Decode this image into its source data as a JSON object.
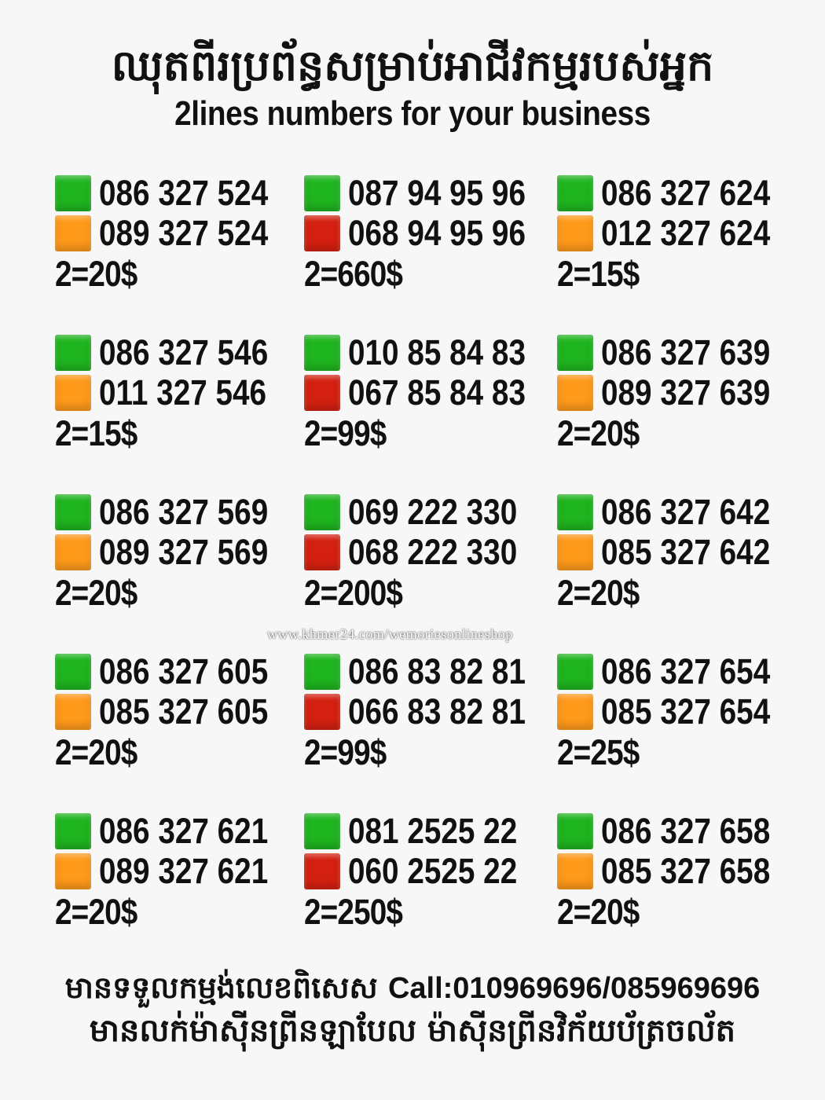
{
  "header": {
    "title_khmer": "ឈុតពីរប្រព័ន្ធសម្រាប់អាជីវកម្មរបស់អ្នក",
    "title_english": "2lines numbers for your business"
  },
  "colors": {
    "green": "#1fb51f",
    "orange": "#ff9a1a",
    "red": "#d42010"
  },
  "listings": [
    {
      "lines": [
        {
          "number": "086 327 524",
          "color": "green"
        },
        {
          "number": "089 327 524",
          "color": "orange"
        }
      ],
      "price": "2=20$"
    },
    {
      "lines": [
        {
          "number": "087 94 95 96",
          "color": "green"
        },
        {
          "number": "068 94 95 96",
          "color": "red"
        }
      ],
      "price": "2=660$"
    },
    {
      "lines": [
        {
          "number": "086 327 624",
          "color": "green"
        },
        {
          "number": "012 327 624",
          "color": "orange"
        }
      ],
      "price": "2=15$"
    },
    {
      "lines": [
        {
          "number": "086 327 546",
          "color": "green"
        },
        {
          "number": "011 327 546",
          "color": "orange"
        }
      ],
      "price": "2=15$"
    },
    {
      "lines": [
        {
          "number": "010 85 84 83",
          "color": "green"
        },
        {
          "number": "067 85 84 83",
          "color": "red"
        }
      ],
      "price": "2=99$"
    },
    {
      "lines": [
        {
          "number": "086 327 639",
          "color": "green"
        },
        {
          "number": "089 327 639",
          "color": "orange"
        }
      ],
      "price": "2=20$"
    },
    {
      "lines": [
        {
          "number": "086 327 569",
          "color": "green"
        },
        {
          "number": "089 327 569",
          "color": "orange"
        }
      ],
      "price": "2=20$"
    },
    {
      "lines": [
        {
          "number": "069 222 330",
          "color": "green"
        },
        {
          "number": "068 222 330",
          "color": "red"
        }
      ],
      "price": "2=200$"
    },
    {
      "lines": [
        {
          "number": "086 327 642",
          "color": "green"
        },
        {
          "number": "085 327 642",
          "color": "orange"
        }
      ],
      "price": "2=20$"
    },
    {
      "lines": [
        {
          "number": "086 327 605",
          "color": "green"
        },
        {
          "number": "085 327 605",
          "color": "orange"
        }
      ],
      "price": "2=20$"
    },
    {
      "lines": [
        {
          "number": "086 83 82 81",
          "color": "green"
        },
        {
          "number": "066 83 82 81",
          "color": "red"
        }
      ],
      "price": "2=99$"
    },
    {
      "lines": [
        {
          "number": "086 327 654",
          "color": "green"
        },
        {
          "number": "085 327 654",
          "color": "orange"
        }
      ],
      "price": "2=25$"
    },
    {
      "lines": [
        {
          "number": "086 327 621",
          "color": "green"
        },
        {
          "number": "089 327 621",
          "color": "orange"
        }
      ],
      "price": "2=20$"
    },
    {
      "lines": [
        {
          "number": "081 2525 22",
          "color": "green"
        },
        {
          "number": "060 2525 22",
          "color": "red"
        }
      ],
      "price": "2=250$"
    },
    {
      "lines": [
        {
          "number": "086 327 658",
          "color": "green"
        },
        {
          "number": "085 327 658",
          "color": "orange"
        }
      ],
      "price": "2=20$"
    }
  ],
  "watermark": "www.khmer24.com/wemoriesonlineshop",
  "footer": {
    "line1_khmer": "មានទទួលកម្មង់លេខពិសេស",
    "line1_call": "Call:010969696/085969696",
    "line2_khmer": "មានលក់ម៉ាស៊ីនព្រីនឡាបែល ម៉ាស៊ីនព្រីនវិក័យប័ត្រចល័ត"
  }
}
